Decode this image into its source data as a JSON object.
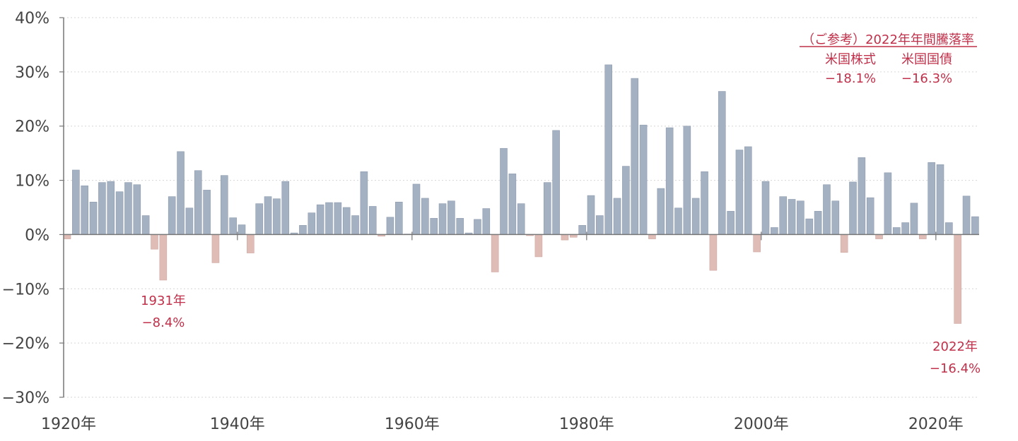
{
  "chart_data": {
    "type": "bar",
    "title": "",
    "xlabel": "",
    "ylabel": "",
    "ylim": [
      -30,
      40
    ],
    "y_ticks": [
      {
        "value": 40,
        "label": "40%"
      },
      {
        "value": 30,
        "label": "30%"
      },
      {
        "value": 20,
        "label": "20%"
      },
      {
        "value": 10,
        "label": "10%"
      },
      {
        "value": 0,
        "label": "0%"
      },
      {
        "value": -10,
        "label": "−10%"
      },
      {
        "value": -20,
        "label": "−20%"
      },
      {
        "value": -30,
        "label": "−30%"
      }
    ],
    "x_ticks": [
      {
        "year": 1920,
        "label": "1920年"
      },
      {
        "year": 1940,
        "label": "1940年"
      },
      {
        "year": 1960,
        "label": "1960年"
      },
      {
        "year": 1980,
        "label": "1980年"
      },
      {
        "year": 2000,
        "label": "2000年"
      },
      {
        "year": 2020,
        "label": "2020年"
      }
    ],
    "grid": true,
    "colors": {
      "positive": "#a3b1c3",
      "negative": "#e0bcb7",
      "annotation": "#c0304a",
      "axis": "#777777",
      "grid": "#d6d6d6"
    },
    "start_year": 1920,
    "values": [
      -0.8,
      11.9,
      9.0,
      6.0,
      9.6,
      9.8,
      7.9,
      9.6,
      9.2,
      3.5,
      -2.7,
      -8.4,
      7.0,
      15.3,
      4.9,
      11.8,
      8.2,
      -5.2,
      10.9,
      3.1,
      1.8,
      -3.4,
      5.7,
      7.0,
      6.6,
      9.8,
      0.3,
      1.7,
      4.0,
      5.5,
      5.9,
      5.9,
      5.0,
      3.5,
      11.6,
      5.2,
      -0.3,
      3.2,
      6.0,
      0.1,
      9.3,
      6.7,
      3.0,
      5.7,
      6.2,
      3.0,
      0.3,
      2.8,
      4.8,
      -6.9,
      15.9,
      11.2,
      5.7,
      -0.2,
      -4.1,
      9.6,
      19.2,
      -1.0,
      -0.5,
      1.7,
      7.2,
      3.5,
      31.3,
      6.7,
      12.6,
      28.8,
      20.2,
      -0.8,
      8.5,
      19.7,
      4.9,
      20.0,
      6.7,
      11.6,
      -6.6,
      26.4,
      4.3,
      15.6,
      16.2,
      -3.2,
      9.8,
      1.3,
      7.0,
      6.5,
      6.2,
      2.9,
      4.3,
      9.2,
      6.2,
      -3.3,
      9.7,
      14.2,
      6.8,
      -0.8,
      11.4,
      1.3,
      2.2,
      5.8,
      -0.8,
      13.3,
      12.9,
      2.2,
      -16.4,
      7.1,
      3.3
    ],
    "annotations": [
      {
        "lines": [
          "1931年",
          "−8.4%"
        ]
      },
      {
        "lines": [
          "2022年",
          "−16.4%"
        ]
      }
    ],
    "reference_box": {
      "title": "（ご参考）2022年年間騰落率",
      "items": [
        {
          "label": "米国株式",
          "value": "−18.1%"
        },
        {
          "label": "米国国債",
          "value": "−16.3%"
        }
      ]
    }
  }
}
